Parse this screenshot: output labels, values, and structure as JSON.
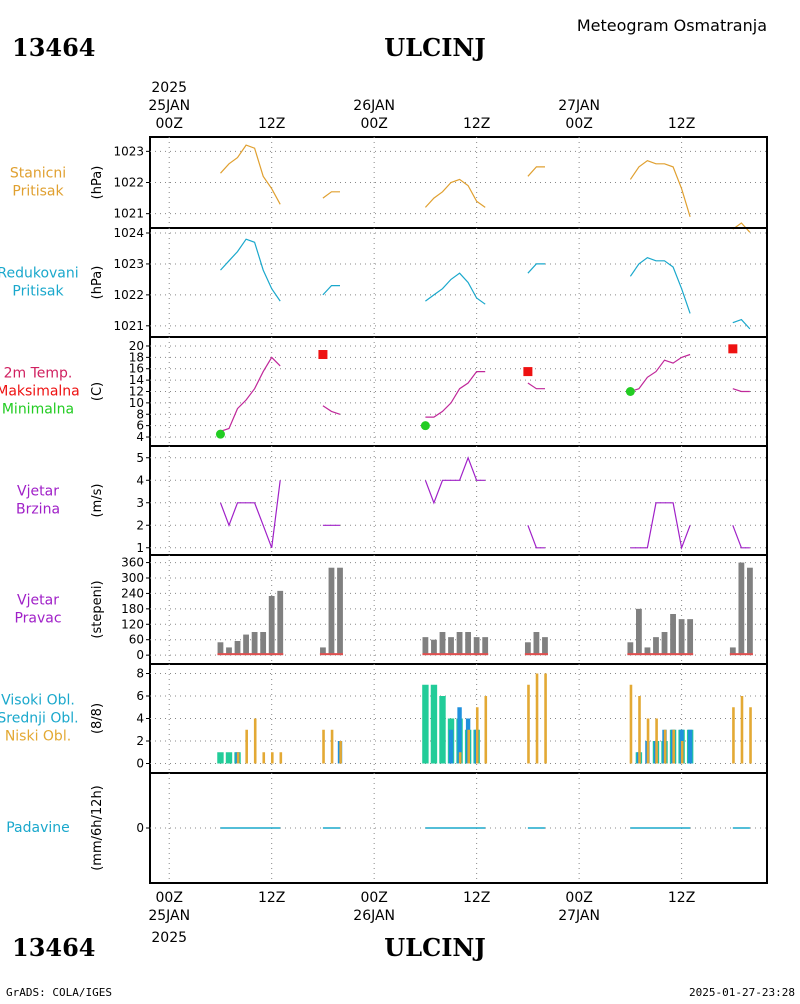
{
  "header": {
    "station_id": "13464",
    "station_name": "ULCINJ",
    "subtitle": "Meteogram Osmatranja"
  },
  "footer": {
    "station_id": "13464",
    "station_name": "ULCINJ",
    "credit": "GrADS: COLA/IGES",
    "timestamp": "2025-01-27-23:28"
  },
  "time_axis": {
    "year": "2025",
    "labels": [
      {
        "hour": 0,
        "hh": "00Z",
        "date": "25JAN"
      },
      {
        "hour": 12,
        "hh": "12Z",
        "date": ""
      },
      {
        "hour": 24,
        "hh": "00Z",
        "date": "26JAN"
      },
      {
        "hour": 36,
        "hh": "12Z",
        "date": ""
      },
      {
        "hour": 48,
        "hh": "00Z",
        "date": "27JAN"
      },
      {
        "hour": 60,
        "hh": "12Z",
        "date": ""
      }
    ]
  },
  "colors": {
    "pressure_station": "#e0a030",
    "pressure_reduced": "#1aa8cc",
    "temp_line": "#c0289a",
    "temp_max": "#ee1111",
    "temp_min": "#22cc22",
    "wind": "#a020c8",
    "wind_dir_bar": "#808080",
    "wind_dir_base": "#e05050",
    "cloud_high": "#22cc99",
    "cloud_mid": "#1f90dd",
    "cloud_low": "#e3a934",
    "precip": "#1aa8cc",
    "grid": "#888888"
  },
  "panels": [
    {
      "key": "stanicni",
      "label_lines": [
        "Stanicni",
        "Pritisak"
      ],
      "label_colors": [
        "#e0a030",
        "#e0a030"
      ],
      "unit": "(hPa)"
    },
    {
      "key": "redukovani",
      "label_lines": [
        "Redukovani",
        "Pritisak"
      ],
      "label_colors": [
        "#1aa8cc",
        "#1aa8cc"
      ],
      "unit": "(hPa)"
    },
    {
      "key": "temp",
      "label_lines": [
        "2m Temp.",
        "Maksimalna",
        "Minimalna"
      ],
      "label_colors": [
        "#d02060",
        "#ee1111",
        "#22cc22"
      ],
      "unit": "(C)"
    },
    {
      "key": "brzina",
      "label_lines": [
        "Vjetar",
        "Brzina"
      ],
      "label_colors": [
        "#a020c8",
        "#a020c8"
      ],
      "unit": "(m/s)"
    },
    {
      "key": "pravac",
      "label_lines": [
        "Vjetar",
        "Pravac"
      ],
      "label_colors": [
        "#a020c8",
        "#a020c8"
      ],
      "unit": "(stepeni)"
    },
    {
      "key": "oblaci",
      "label_lines": [
        "Visoki Obl.",
        "Srednji Obl.",
        "Niski Obl."
      ],
      "label_colors": [
        "#1aa8cc",
        "#1aa8cc",
        "#e3a934"
      ],
      "unit": "(8/8)"
    },
    {
      "key": "padavine",
      "label_lines": [
        "Padavine"
      ],
      "label_colors": [
        "#1aa8cc"
      ],
      "unit": "(mm/6h/12h)"
    }
  ],
  "chart_data": [
    {
      "type": "line",
      "name": "Stanicni Pritisak",
      "ylim": [
        1020.7,
        1023.3
      ],
      "yticks": [
        1021,
        1022,
        1023
      ],
      "segments": [
        [
          [
            6,
            1022.3
          ],
          [
            7,
            1022.6
          ],
          [
            8,
            1022.8
          ],
          [
            9,
            1023.2
          ],
          [
            10,
            1023.1
          ],
          [
            11,
            1022.2
          ],
          [
            12,
            1021.8
          ],
          [
            13,
            1021.3
          ]
        ],
        [
          [
            18,
            1021.5
          ],
          [
            19,
            1021.7
          ],
          [
            20,
            1021.7
          ]
        ],
        [
          [
            30,
            1021.2
          ],
          [
            31,
            1021.5
          ],
          [
            32,
            1021.7
          ],
          [
            33,
            1022.0
          ],
          [
            34,
            1022.1
          ],
          [
            35,
            1021.9
          ],
          [
            36,
            1021.4
          ],
          [
            37,
            1021.2
          ]
        ],
        [
          [
            42,
            1022.2
          ],
          [
            43,
            1022.5
          ],
          [
            44,
            1022.5
          ]
        ],
        [
          [
            54,
            1022.1
          ],
          [
            55,
            1022.5
          ],
          [
            56,
            1022.7
          ],
          [
            57,
            1022.6
          ],
          [
            58,
            1022.6
          ],
          [
            59,
            1022.5
          ],
          [
            60,
            1021.8
          ],
          [
            61,
            1020.9
          ]
        ],
        [
          [
            66,
            1020.5
          ],
          [
            67,
            1020.7
          ],
          [
            68,
            1020.4
          ]
        ]
      ]
    },
    {
      "type": "line",
      "name": "Redukovani Pritisak",
      "ylim": [
        1020.8,
        1024.0
      ],
      "yticks": [
        1021,
        1022,
        1023,
        1024
      ],
      "segments": [
        [
          [
            6,
            1022.8
          ],
          [
            7,
            1023.1
          ],
          [
            8,
            1023.4
          ],
          [
            9,
            1023.8
          ],
          [
            10,
            1023.7
          ],
          [
            11,
            1022.8
          ],
          [
            12,
            1022.2
          ],
          [
            13,
            1021.8
          ]
        ],
        [
          [
            18,
            1022.0
          ],
          [
            19,
            1022.3
          ],
          [
            20,
            1022.3
          ]
        ],
        [
          [
            30,
            1021.8
          ],
          [
            31,
            1022.0
          ],
          [
            32,
            1022.2
          ],
          [
            33,
            1022.5
          ],
          [
            34,
            1022.7
          ],
          [
            35,
            1022.4
          ],
          [
            36,
            1021.9
          ],
          [
            37,
            1021.7
          ]
        ],
        [
          [
            42,
            1022.7
          ],
          [
            43,
            1023.0
          ],
          [
            44,
            1023.0
          ]
        ],
        [
          [
            54,
            1022.6
          ],
          [
            55,
            1023.0
          ],
          [
            56,
            1023.2
          ],
          [
            57,
            1023.1
          ],
          [
            58,
            1023.1
          ],
          [
            59,
            1022.9
          ],
          [
            60,
            1022.2
          ],
          [
            61,
            1021.4
          ]
        ],
        [
          [
            66,
            1021.1
          ],
          [
            67,
            1021.2
          ],
          [
            68,
            1020.9
          ]
        ]
      ]
    },
    {
      "type": "line",
      "name": "2m Temp.",
      "ylim": [
        3.3,
        20.7
      ],
      "yticks": [
        4,
        6,
        8,
        10,
        12,
        14,
        16,
        18,
        20
      ],
      "segments": [
        [
          [
            6,
            5.0
          ],
          [
            7,
            5.5
          ],
          [
            8,
            9.0
          ],
          [
            9,
            10.5
          ],
          [
            10,
            12.5
          ],
          [
            11,
            15.5
          ],
          [
            12,
            18.0
          ],
          [
            13,
            16.5
          ]
        ],
        [
          [
            18,
            9.5
          ],
          [
            19,
            8.5
          ],
          [
            20,
            8.0
          ]
        ],
        [
          [
            30,
            7.5
          ],
          [
            31,
            7.5
          ],
          [
            32,
            8.5
          ],
          [
            33,
            10.0
          ],
          [
            34,
            12.5
          ],
          [
            35,
            13.5
          ],
          [
            36,
            15.5
          ],
          [
            37,
            15.5
          ]
        ],
        [
          [
            42,
            13.5
          ],
          [
            43,
            12.5
          ],
          [
            44,
            12.5
          ]
        ],
        [
          [
            54,
            12.0
          ],
          [
            55,
            12.5
          ],
          [
            56,
            14.5
          ],
          [
            57,
            15.5
          ],
          [
            58,
            17.5
          ],
          [
            59,
            17.0
          ],
          [
            60,
            18.0
          ],
          [
            61,
            18.5
          ]
        ],
        [
          [
            66,
            12.5
          ],
          [
            67,
            12.0
          ],
          [
            68,
            12.0
          ]
        ]
      ],
      "max_points": [
        [
          18,
          18.5
        ],
        [
          42,
          15.5
        ],
        [
          66,
          19.5
        ]
      ],
      "min_points": [
        [
          6,
          4.5
        ],
        [
          30,
          6.0
        ],
        [
          54,
          12.0
        ]
      ]
    },
    {
      "type": "line",
      "name": "Vjetar Brzina",
      "ylim": [
        0.9,
        5.3
      ],
      "yticks": [
        1,
        2,
        3,
        4,
        5
      ],
      "segments": [
        [
          [
            6,
            3
          ],
          [
            7,
            2
          ],
          [
            8,
            3
          ],
          [
            9,
            3
          ],
          [
            10,
            3
          ],
          [
            11,
            2
          ],
          [
            12,
            1
          ],
          [
            13,
            4
          ]
        ],
        [
          [
            18,
            2
          ],
          [
            19,
            2
          ],
          [
            20,
            2
          ]
        ],
        [
          [
            30,
            4
          ],
          [
            31,
            3
          ],
          [
            32,
            4
          ],
          [
            33,
            4
          ],
          [
            34,
            4
          ],
          [
            35,
            5
          ],
          [
            36,
            4
          ],
          [
            37,
            4
          ]
        ],
        [
          [
            42,
            2
          ],
          [
            43,
            1
          ],
          [
            44,
            1
          ]
        ],
        [
          [
            54,
            1
          ],
          [
            55,
            1
          ],
          [
            56,
            1
          ],
          [
            57,
            3
          ],
          [
            58,
            3
          ],
          [
            59,
            3
          ],
          [
            60,
            1
          ],
          [
            61,
            2
          ]
        ],
        [
          [
            66,
            2
          ],
          [
            67,
            1
          ],
          [
            68,
            1
          ]
        ]
      ]
    },
    {
      "type": "bar",
      "name": "Vjetar Pravac",
      "ylim": [
        -15,
        370
      ],
      "yticks": [
        0,
        60,
        120,
        180,
        240,
        300,
        360
      ],
      "x": [
        6,
        7,
        8,
        9,
        10,
        11,
        12,
        13,
        18,
        19,
        20,
        30,
        31,
        32,
        33,
        34,
        35,
        36,
        37,
        42,
        43,
        44,
        54,
        55,
        56,
        57,
        58,
        59,
        60,
        61,
        66,
        67,
        68
      ],
      "values": [
        50,
        30,
        55,
        80,
        90,
        90,
        230,
        250,
        30,
        340,
        340,
        70,
        60,
        90,
        70,
        90,
        90,
        70,
        70,
        50,
        90,
        70,
        50,
        180,
        30,
        70,
        90,
        160,
        140,
        140,
        30,
        360,
        340
      ]
    },
    {
      "type": "bar",
      "name": "Oblaci",
      "ylim": [
        -0.4,
        8.4
      ],
      "yticks": [
        0,
        2,
        4,
        6,
        8
      ],
      "series": [
        {
          "name": "Visoki Obl.",
          "x": [
            6,
            7,
            8,
            30,
            31,
            32,
            33,
            34,
            35,
            36,
            55,
            57,
            58,
            59,
            60,
            61
          ],
          "values": [
            1,
            1,
            1,
            7,
            7,
            6,
            4,
            4,
            3,
            3,
            1,
            2,
            2,
            3,
            3,
            3
          ]
        },
        {
          "name": "Srednji Obl.",
          "x": [
            8,
            33,
            34,
            35,
            36,
            20,
            55,
            56,
            57,
            58,
            59,
            60,
            61
          ],
          "values": [
            1,
            3,
            5,
            4,
            3,
            2,
            1,
            2,
            2,
            3,
            3,
            3,
            3
          ]
        },
        {
          "name": "Niski Obl.",
          "x": [
            8,
            9,
            10,
            11,
            12,
            13,
            18,
            19,
            20,
            34,
            35,
            36,
            37,
            42,
            43,
            44,
            54,
            55,
            56,
            57,
            58,
            59,
            60,
            66,
            67,
            68
          ],
          "values": [
            1,
            3,
            4,
            1,
            1,
            1,
            3,
            3,
            2,
            1,
            3,
            5,
            6,
            7,
            8,
            8,
            7,
            6,
            4,
            4,
            3,
            3,
            2,
            5,
            6,
            5
          ]
        }
      ]
    },
    {
      "type": "line",
      "name": "Padavine",
      "ylim": [
        -1,
        1
      ],
      "yticks": [
        0
      ],
      "segments": [
        [
          [
            6,
            0
          ],
          [
            13,
            0
          ]
        ],
        [
          [
            18,
            0
          ],
          [
            20,
            0
          ]
        ],
        [
          [
            30,
            0
          ],
          [
            37,
            0
          ]
        ],
        [
          [
            42,
            0
          ],
          [
            44,
            0
          ]
        ],
        [
          [
            54,
            0
          ],
          [
            61,
            0
          ]
        ],
        [
          [
            66,
            0
          ],
          [
            68,
            0
          ]
        ]
      ]
    }
  ]
}
